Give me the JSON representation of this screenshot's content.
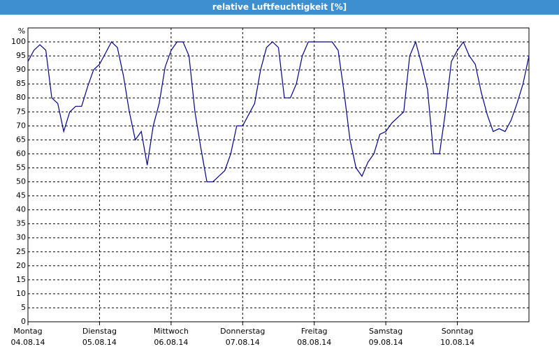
{
  "chart_data": {
    "type": "line",
    "title": "relative Luftfeuchtigkeit [%]",
    "y_unit": "%",
    "x_labels": [
      {
        "weekday": "Montag",
        "date": "04.08.14"
      },
      {
        "weekday": "Dienstag",
        "date": "05.08.14"
      },
      {
        "weekday": "Mittwoch",
        "date": "06.08.14"
      },
      {
        "weekday": "Donnerstag",
        "date": "07.08.14"
      },
      {
        "weekday": "Freitag",
        "date": "08.08.14"
      },
      {
        "weekday": "Samstag",
        "date": "09.08.14"
      },
      {
        "weekday": "Sonntag",
        "date": "10.08.14"
      }
    ],
    "series": [
      {
        "color": "#00008b",
        "values": [
          93,
          97,
          99,
          97,
          80,
          78,
          68,
          75,
          77,
          77,
          84,
          90,
          92,
          96,
          100,
          98,
          88,
          75,
          65,
          68,
          56,
          70,
          78,
          91,
          97,
          100,
          100,
          95,
          75,
          62,
          50,
          50,
          52,
          54,
          60,
          70,
          70,
          74,
          78,
          90,
          98,
          100,
          98,
          80,
          80,
          85,
          95,
          100,
          100,
          100,
          100,
          100,
          97,
          82,
          65,
          55,
          52,
          57,
          60,
          67,
          68,
          71,
          73,
          75,
          95,
          100,
          92,
          83,
          60,
          60,
          75,
          93,
          97,
          100,
          95,
          92,
          82,
          74,
          68,
          69,
          68,
          72,
          78,
          85,
          95
        ]
      }
    ],
    "ylim": [
      0,
      105
    ],
    "yticks": [
      0,
      5,
      10,
      15,
      20,
      25,
      30,
      35,
      40,
      45,
      50,
      55,
      60,
      65,
      70,
      75,
      80,
      85,
      90,
      95,
      100
    ],
    "grid": true
  }
}
